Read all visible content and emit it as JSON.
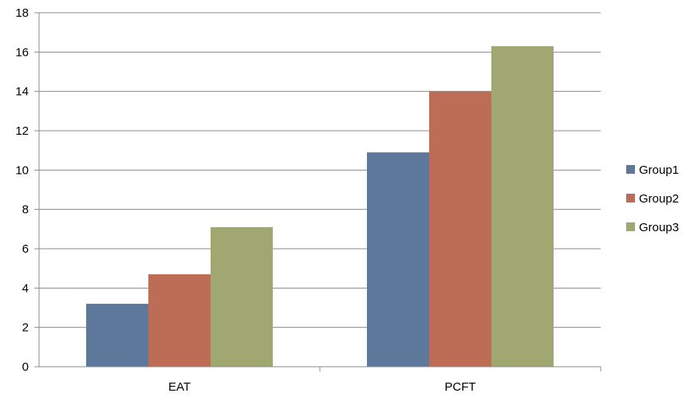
{
  "chart_data": {
    "type": "bar",
    "title": "",
    "xlabel": "",
    "ylabel": "",
    "categories": [
      "EAT",
      "PCFT"
    ],
    "series": [
      {
        "name": "Group1",
        "values": [
          3.2,
          10.9
        ],
        "color": "#5e789b"
      },
      {
        "name": "Group2",
        "values": [
          4.7,
          14.0
        ],
        "color": "#bd6c56"
      },
      {
        "name": "Group3",
        "values": [
          7.1,
          16.3
        ],
        "color": "#a1a770"
      }
    ],
    "ylim": [
      0,
      18
    ],
    "yticks": [
      0,
      2,
      4,
      6,
      8,
      10,
      12,
      14,
      16,
      18
    ],
    "grid": true,
    "legend_position": "right"
  }
}
